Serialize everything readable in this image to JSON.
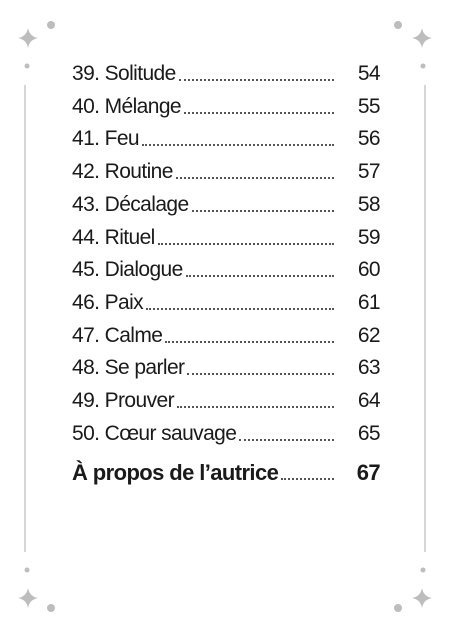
{
  "entries": [
    {
      "title": "39. Solitude",
      "page": 54
    },
    {
      "title": "40. Mélange",
      "page": 55
    },
    {
      "title": "41. Feu",
      "page": 56
    },
    {
      "title": "42. Routine",
      "page": 57
    },
    {
      "title": "43. Décalage",
      "page": 58
    },
    {
      "title": "44. Rituel",
      "page": 59
    },
    {
      "title": "45. Dialogue",
      "page": 60
    },
    {
      "title": "46. Paix",
      "page": 61
    },
    {
      "title": "47. Calme",
      "page": 62
    },
    {
      "title": "48. Se parler",
      "page": 63
    },
    {
      "title": "49. Prouver",
      "page": 64
    },
    {
      "title": "50. Cœur sauvage",
      "page": 65
    }
  ],
  "about": {
    "title": "À propos de l’autrice",
    "page": 67
  }
}
